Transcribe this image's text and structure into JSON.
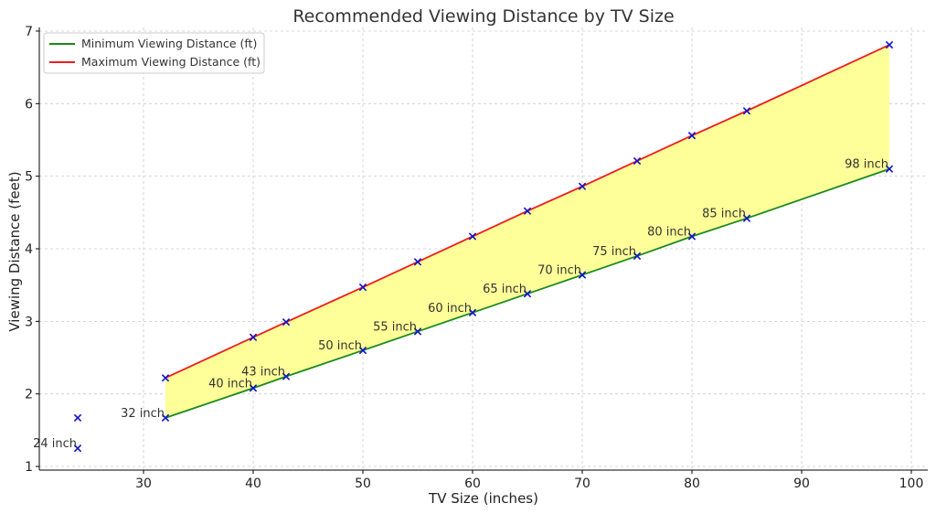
{
  "chart_data": {
    "type": "line",
    "title": "Recommended Viewing Distance by TV Size",
    "xlabel": "TV Size (inches)",
    "ylabel": "Viewing Distance (feet)",
    "xlim": [
      20.5,
      101.5
    ],
    "ylim": [
      0.95,
      7.05
    ],
    "xticks": [
      30,
      40,
      50,
      60,
      70,
      80,
      90,
      100
    ],
    "yticks": [
      1,
      2,
      3,
      4,
      5,
      6,
      7
    ],
    "grid": true,
    "legend_position": "top-left",
    "fill_between": {
      "color": "#ffff99"
    },
    "series": [
      {
        "name": "Minimum Viewing Distance (ft)",
        "color": "#1a8a1a",
        "x": [
          32,
          40,
          43,
          50,
          55,
          60,
          65,
          70,
          75,
          80,
          85,
          98
        ],
        "y": [
          1.67,
          2.08,
          2.24,
          2.6,
          2.86,
          3.12,
          3.38,
          3.64,
          3.9,
          4.17,
          4.42,
          5.1
        ]
      },
      {
        "name": "Maximum Viewing Distance (ft)",
        "color": "#ee1c1c",
        "x": [
          32,
          40,
          43,
          50,
          55,
          60,
          65,
          70,
          75,
          80,
          85,
          98
        ],
        "y": [
          2.22,
          2.78,
          2.99,
          3.47,
          3.82,
          4.17,
          4.52,
          4.86,
          5.21,
          5.56,
          5.9,
          6.81
        ]
      }
    ],
    "markers": {
      "color": "#1010cc",
      "x": [
        24,
        24,
        32,
        32,
        40,
        40,
        43,
        43,
        50,
        50,
        55,
        55,
        60,
        60,
        65,
        65,
        70,
        70,
        75,
        75,
        80,
        80,
        85,
        85,
        98,
        98
      ],
      "y": [
        1.25,
        1.67,
        1.67,
        2.22,
        2.08,
        2.78,
        2.24,
        2.99,
        2.6,
        3.47,
        2.86,
        3.82,
        3.12,
        4.17,
        3.38,
        4.52,
        3.64,
        4.86,
        3.9,
        5.21,
        4.17,
        5.56,
        4.42,
        5.9,
        5.1,
        6.81
      ]
    },
    "point_labels": [
      {
        "text": "24 inch",
        "x": 24,
        "y": 1.25
      },
      {
        "text": "32 inch",
        "x": 32,
        "y": 1.67
      },
      {
        "text": "40 inch",
        "x": 40,
        "y": 2.08
      },
      {
        "text": "43 inch",
        "x": 43,
        "y": 2.24
      },
      {
        "text": "50 inch",
        "x": 50,
        "y": 2.6
      },
      {
        "text": "55 inch",
        "x": 55,
        "y": 2.86
      },
      {
        "text": "60 inch",
        "x": 60,
        "y": 3.12
      },
      {
        "text": "65 inch",
        "x": 65,
        "y": 3.38
      },
      {
        "text": "70 inch",
        "x": 70,
        "y": 3.64
      },
      {
        "text": "75 inch",
        "x": 75,
        "y": 3.9
      },
      {
        "text": "80 inch",
        "x": 80,
        "y": 4.17
      },
      {
        "text": "85 inch",
        "x": 85,
        "y": 4.42
      },
      {
        "text": "98 inch",
        "x": 98,
        "y": 5.1
      }
    ]
  }
}
